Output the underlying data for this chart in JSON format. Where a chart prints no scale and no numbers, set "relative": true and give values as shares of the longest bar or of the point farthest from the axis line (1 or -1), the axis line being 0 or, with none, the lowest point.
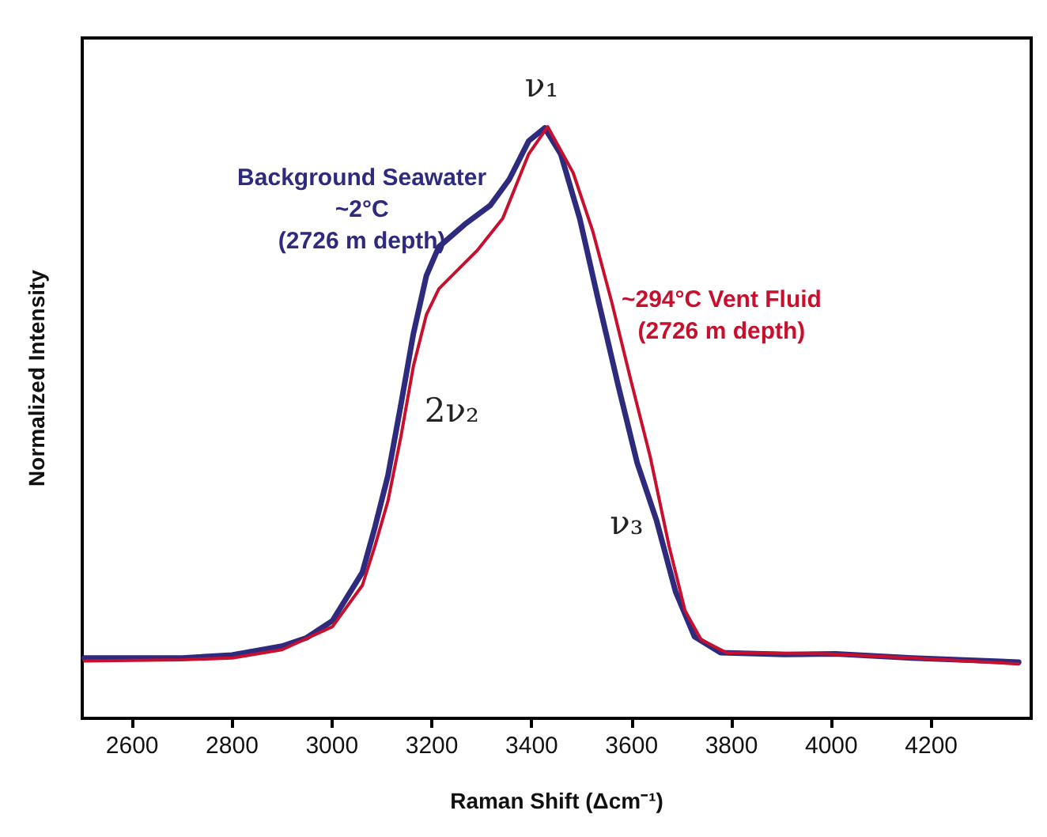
{
  "chart_data": {
    "type": "line",
    "relative": true,
    "xlabel": "Raman Shift (Δcm⁻¹)",
    "ylabel": "Normalized Intensity",
    "xlim": [
      2500,
      4400
    ],
    "xticks": [
      2600,
      2800,
      3000,
      3200,
      3400,
      3600,
      3800,
      4000,
      4200
    ],
    "grid": false,
    "legend": false,
    "marker": "none",
    "line_style": "solid",
    "series": [
      {
        "name": "Background Seawater\n~2°C\n(2726 m depth)",
        "color": "#2e2a7e",
        "x": [
          2504,
          2700,
          2800,
          2900,
          2949,
          3001,
          3061,
          3086,
          3112,
          3138,
          3163,
          3189,
          3214,
          3266,
          3317,
          3355,
          3394,
          3426,
          3458,
          3496,
          3534,
          3573,
          3611,
          3650,
          3688,
          3726,
          3778,
          3906,
          4008,
          4162,
          4375
        ],
        "values": [
          0.102,
          0.102,
          0.107,
          0.122,
          0.136,
          0.165,
          0.247,
          0.323,
          0.41,
          0.53,
          0.65,
          0.748,
          0.797,
          0.835,
          0.867,
          0.911,
          0.976,
          0.998,
          0.954,
          0.845,
          0.704,
          0.563,
          0.432,
          0.334,
          0.214,
          0.138,
          0.111,
          0.108,
          0.109,
          0.102,
          0.095
        ]
      },
      {
        "name": "~294°C Vent Fluid\n(2726 m depth)",
        "color": "#c8102e",
        "x": [
          2504,
          2700,
          2800,
          2900,
          3001,
          3061,
          3086,
          3112,
          3138,
          3163,
          3189,
          3214,
          3240,
          3291,
          3342,
          3394,
          3432,
          3483,
          3522,
          3560,
          3598,
          3637,
          3675,
          3707,
          3739,
          3790,
          3995,
          4162,
          4375
        ],
        "values": [
          0.097,
          0.099,
          0.102,
          0.116,
          0.155,
          0.225,
          0.291,
          0.367,
          0.476,
          0.595,
          0.682,
          0.726,
          0.748,
          0.791,
          0.845,
          0.954,
          1.0,
          0.922,
          0.824,
          0.704,
          0.573,
          0.443,
          0.291,
          0.182,
          0.133,
          0.111,
          0.109,
          0.102,
          0.092
        ]
      }
    ],
    "annotations": [
      "ν₁",
      "2ν₂",
      "ν₃"
    ]
  }
}
